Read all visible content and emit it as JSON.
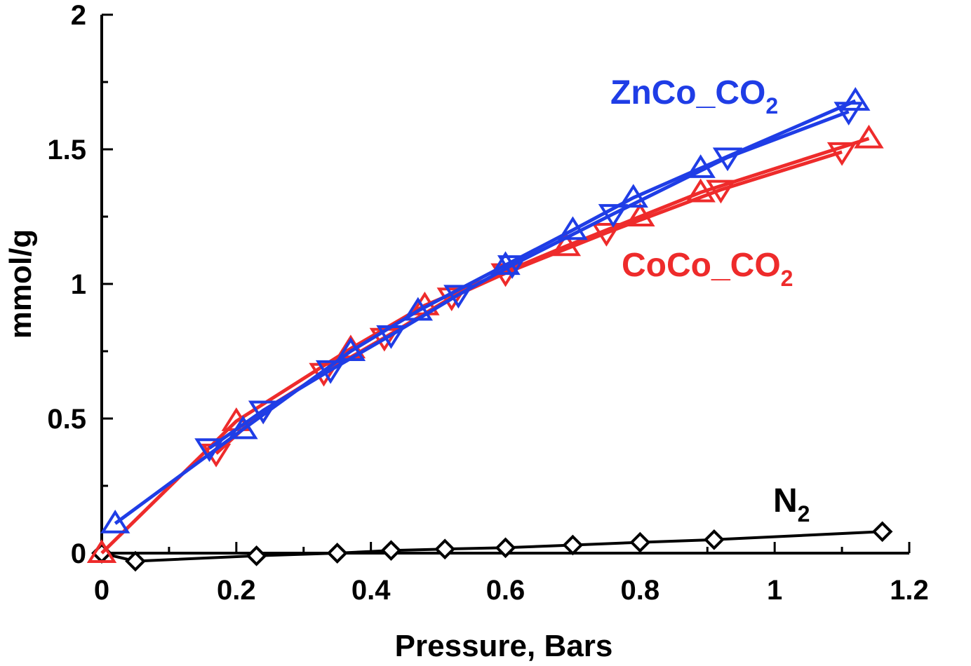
{
  "chart_data": {
    "type": "line",
    "xlabel": "Pressure, Bars",
    "ylabel": "mmol/g",
    "xlim": [
      0,
      1.2
    ],
    "ylim": [
      0,
      2
    ],
    "x_ticks": [
      "0",
      "0.2",
      "0.4",
      "0.6",
      "0.8",
      "1",
      "1.2"
    ],
    "y_ticks": [
      "0",
      "0.5",
      "1",
      "1.5",
      "2"
    ],
    "grid": false,
    "legend": "inline labels",
    "series": [
      {
        "name": "CoCo_CO",
        "name_sub": "2",
        "color": "#ee2b2b",
        "adsorption": {
          "marker": "triangle-up",
          "x": [
            0.0,
            0.2,
            0.37,
            0.48,
            0.69,
            0.8,
            0.89,
            1.14
          ],
          "y": [
            0.0,
            0.49,
            0.76,
            0.92,
            1.14,
            1.25,
            1.34,
            1.54
          ]
        },
        "desorption": {
          "marker": "triangle-down",
          "x": [
            0.17,
            0.24,
            0.33,
            0.42,
            0.52,
            0.6,
            0.75,
            0.92,
            1.1
          ],
          "y": [
            0.37,
            0.53,
            0.67,
            0.8,
            0.95,
            1.04,
            1.19,
            1.35,
            1.49
          ]
        }
      },
      {
        "name": "ZnCo_CO",
        "name_sub": "2",
        "color": "#1f3de6",
        "adsorption": {
          "marker": "triangle-up",
          "x": [
            0.02,
            0.21,
            0.37,
            0.47,
            0.6,
            0.7,
            0.79,
            0.89,
            1.12
          ],
          "y": [
            0.11,
            0.46,
            0.75,
            0.9,
            1.07,
            1.2,
            1.32,
            1.43,
            1.68
          ]
        },
        "desorption": {
          "marker": "triangle-down",
          "x": [
            0.16,
            0.24,
            0.34,
            0.43,
            0.53,
            0.61,
            0.76,
            0.93,
            1.11
          ],
          "y": [
            0.39,
            0.53,
            0.68,
            0.81,
            0.96,
            1.07,
            1.26,
            1.47,
            1.64
          ]
        }
      },
      {
        "name": "N",
        "name_sub": "2",
        "color": "#000000",
        "adsorption": {
          "marker": "diamond",
          "x": [
            0.0,
            0.35,
            0.43,
            0.51,
            0.6,
            0.7,
            0.8,
            0.91,
            1.16
          ],
          "y": [
            0.0,
            0.0,
            0.01,
            0.015,
            0.02,
            0.03,
            0.04,
            0.05,
            0.08
          ]
        },
        "desorption": {
          "marker": "diamond",
          "x": [
            0.0,
            0.05,
            0.23,
            0.35
          ],
          "y": [
            0.0,
            -0.03,
            -0.01,
            0.0
          ]
        }
      }
    ]
  }
}
